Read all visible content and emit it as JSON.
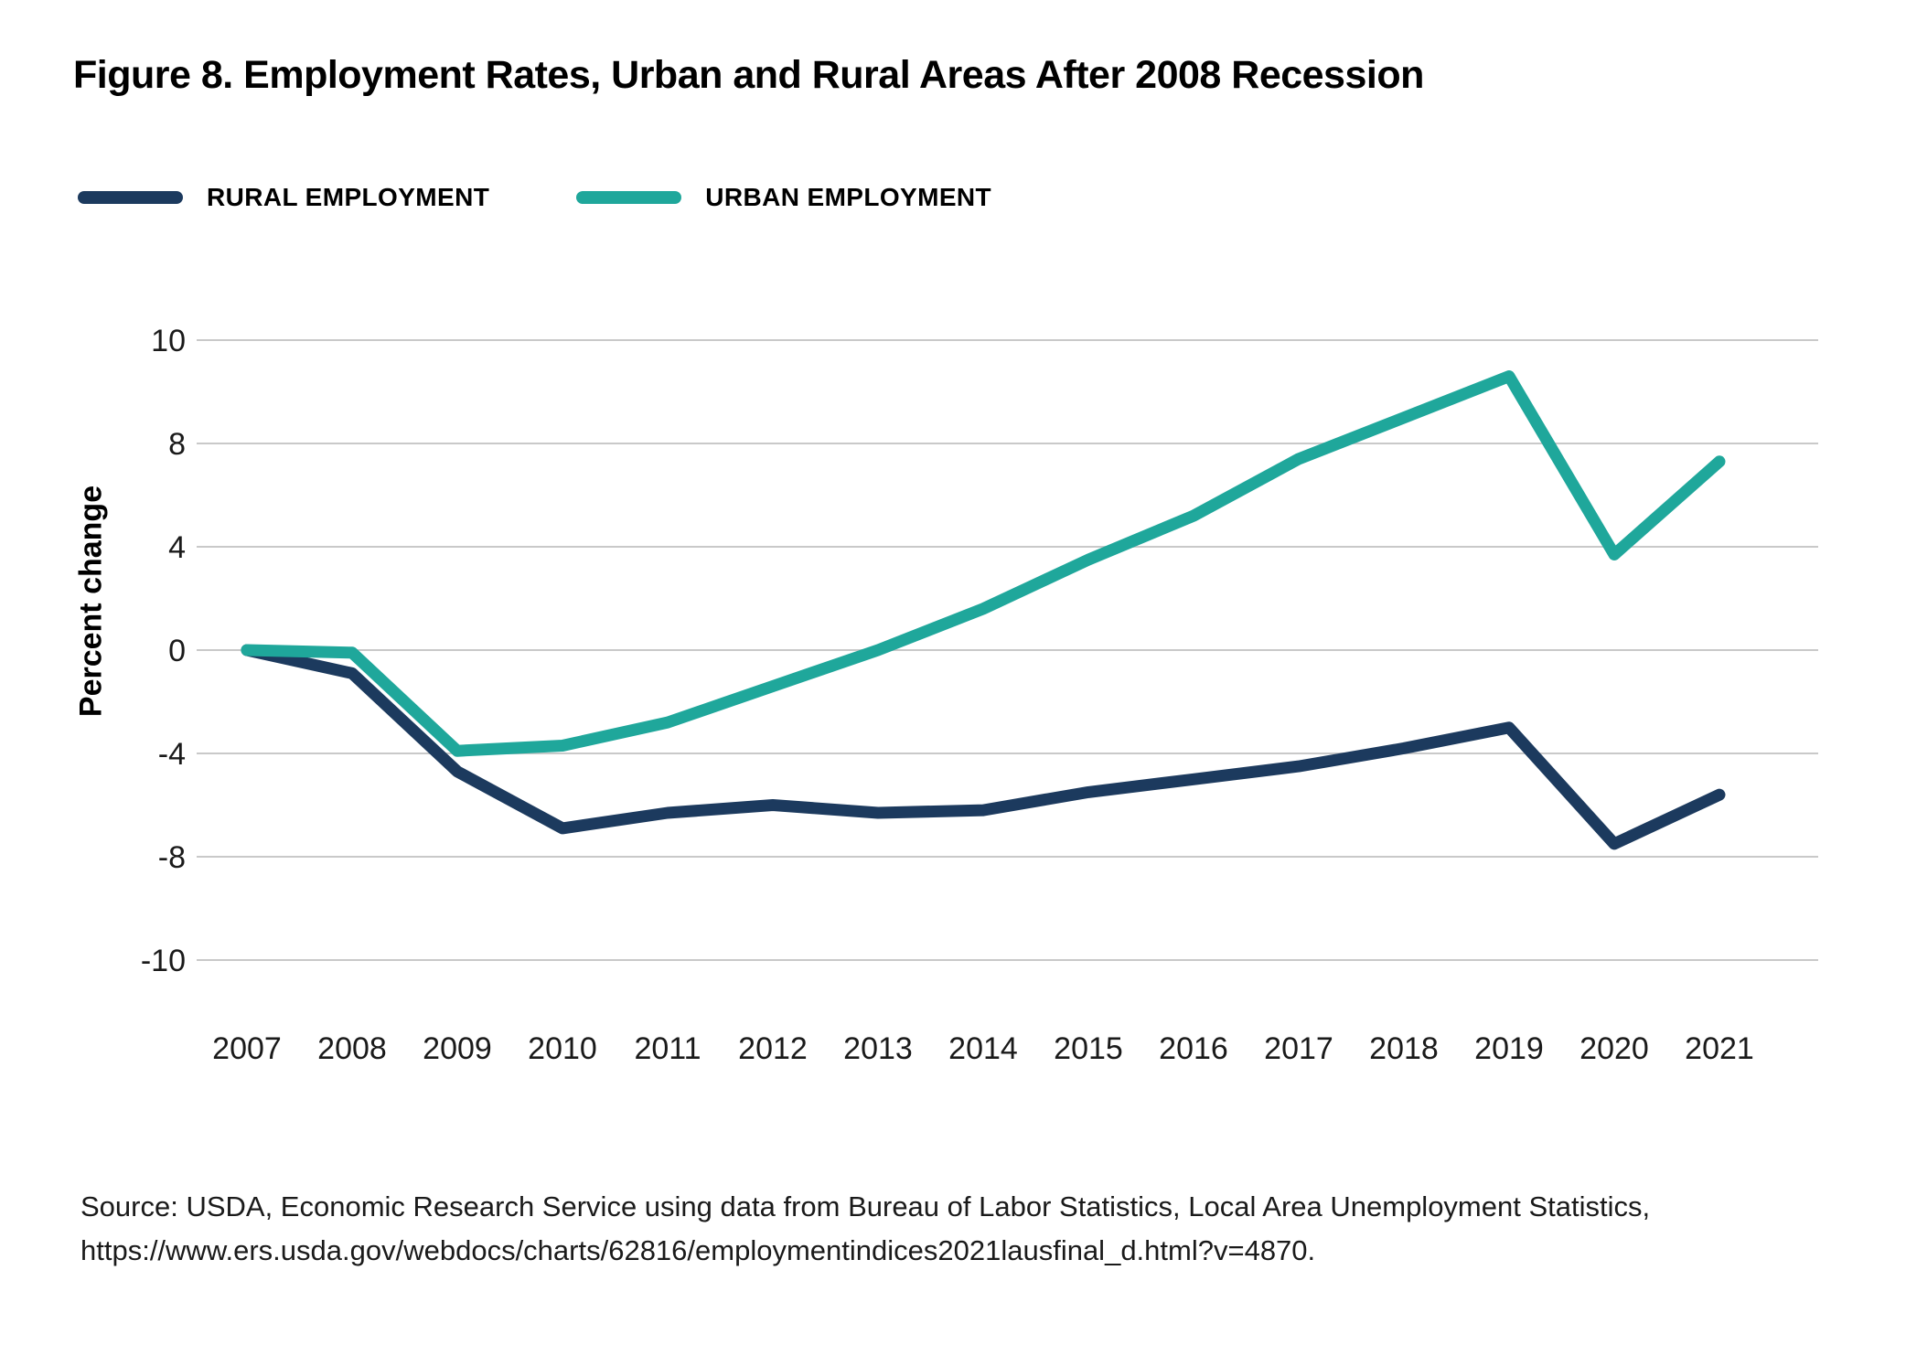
{
  "title": "Figure 8. Employment Rates, Urban and Rural Areas After 2008 Recession",
  "legend": [
    {
      "label": "RURAL EMPLOYMENT",
      "color": "#1C3A5E"
    },
    {
      "label": "URBAN EMPLOYMENT",
      "color": "#1FA79B"
    }
  ],
  "y_axis_label": "Percent change",
  "source": {
    "line1": "Source: USDA, Economic Research Service using data from Bureau of Labor Statistics, Local Area Unemployment Statistics,",
    "line2": "https://www.ers.usda.gov/webdocs/charts/62816/employmentindices2021lausfinal_d.html?v=4870."
  },
  "chart_data": {
    "type": "line",
    "title": "Figure 8. Employment Rates, Urban and Rural Areas After 2008 Recession",
    "xlabel": "",
    "ylabel": "Percent change",
    "x": [
      2007,
      2008,
      2009,
      2010,
      2011,
      2012,
      2013,
      2014,
      2015,
      2016,
      2017,
      2018,
      2019,
      2020,
      2021
    ],
    "series": [
      {
        "name": "RURAL EMPLOYMENT",
        "color": "#1C3A5E",
        "values": [
          0.0,
          -0.9,
          -4.7,
          -6.9,
          -6.3,
          -6.0,
          -6.3,
          -6.2,
          -5.5,
          -5.0,
          -4.5,
          -3.8,
          -3.0,
          -7.5,
          -5.6
        ]
      },
      {
        "name": "URBAN EMPLOYMENT",
        "color": "#1FA79B",
        "values": [
          0.0,
          -0.1,
          -3.9,
          -3.7,
          -2.8,
          -1.4,
          0.0,
          1.6,
          3.5,
          5.2,
          7.4,
          8.5,
          9.3,
          3.7,
          7.3
        ]
      }
    ],
    "y_ticks": [
      10,
      8,
      4,
      0,
      -4,
      -8,
      -10
    ],
    "y_tick_spacing": "uniform",
    "grid": true,
    "gridline_color": "#c9c9c9",
    "legend_position": "top-left"
  }
}
